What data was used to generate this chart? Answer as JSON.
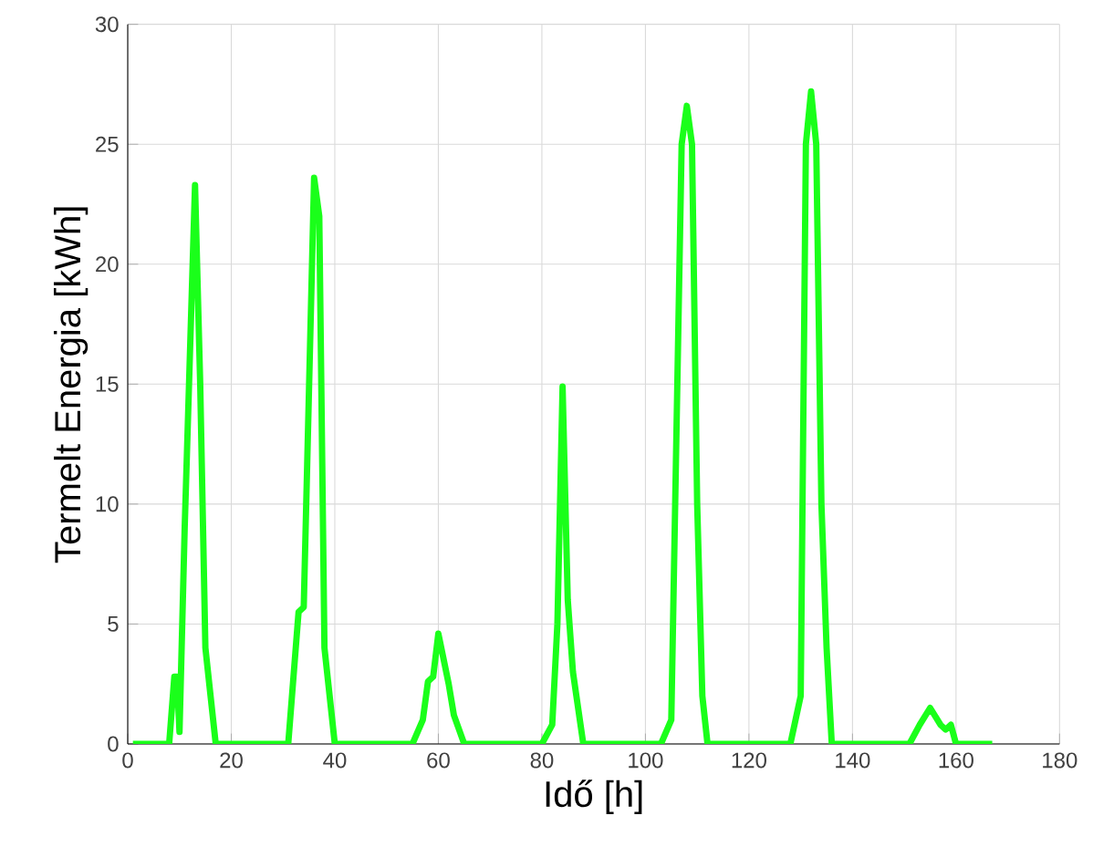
{
  "chart_data": {
    "type": "line",
    "xlabel": "Idő [h]",
    "ylabel": "Termelt Energia [kWh]",
    "x": [
      1,
      8,
      9,
      9.5,
      10,
      11,
      13,
      14,
      15,
      17,
      31,
      33,
      34,
      36,
      37,
      38,
      40,
      55,
      57,
      58,
      59,
      60,
      62,
      63,
      65,
      80,
      82,
      83,
      84,
      85,
      86,
      88,
      103,
      105,
      107,
      108,
      109,
      110,
      111,
      112,
      128,
      130,
      131,
      132,
      133,
      134,
      135,
      136,
      151,
      153,
      155,
      157,
      158,
      159,
      160,
      167
    ],
    "series": [
      {
        "color": "#1aff1a",
        "values": [
          0,
          0,
          2.8,
          2.8,
          0.5,
          9,
          23.3,
          15,
          4,
          0,
          0,
          5.5,
          5.7,
          23.6,
          22,
          4,
          0,
          0,
          1,
          2.6,
          2.8,
          4.6,
          2.5,
          1.2,
          0,
          0,
          0.8,
          5,
          14.9,
          6,
          3,
          0,
          0,
          1,
          25,
          26.6,
          25,
          10,
          2,
          0,
          0,
          2,
          25,
          27.2,
          25,
          10,
          4,
          0,
          0,
          0.8,
          1.5,
          0.8,
          0.6,
          0.8,
          0,
          0
        ]
      }
    ],
    "xlim": [
      0,
      180
    ],
    "ylim": [
      0,
      30
    ],
    "xticks": [
      0,
      20,
      40,
      60,
      80,
      100,
      120,
      140,
      160,
      180
    ],
    "yticks": [
      0,
      5,
      10,
      15,
      20,
      25,
      30
    ],
    "grid": true,
    "marker": "none",
    "line_style": "solid"
  }
}
